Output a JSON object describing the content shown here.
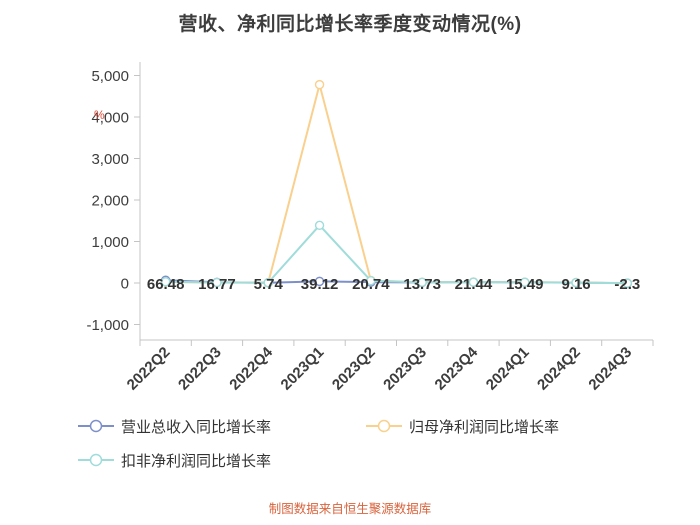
{
  "title": "营收、净利同比增长率季度变动情况(%)",
  "footer": "制图数据来自恒生聚源数据库",
  "chart_data": {
    "type": "line",
    "title": "营收、净利同比增长率季度变动情况(%)",
    "categories": [
      "2022Q2",
      "2022Q3",
      "2022Q4",
      "2023Q1",
      "2023Q2",
      "2023Q3",
      "2023Q4",
      "2024Q1",
      "2024Q2",
      "2024Q3"
    ],
    "series": [
      {
        "name": "营业总收入同比增长率",
        "color": "#7d90ca",
        "values": [
          66.48,
          16.77,
          5.74,
          39.12,
          20.74,
          13.73,
          21.44,
          15.49,
          9.16,
          -2.3
        ]
      },
      {
        "name": "归母净利润同比增长率",
        "color": "#f9d08d",
        "values": [
          25,
          10,
          8,
          4780,
          60,
          18,
          22,
          20,
          12,
          -5
        ]
      },
      {
        "name": "扣非净利润同比增长率",
        "color": "#9fdcda",
        "values": [
          30,
          12,
          9,
          1390,
          55,
          16,
          20,
          18,
          10,
          -6
        ]
      }
    ],
    "data_labels": [
      "66.48",
      "16.77",
      "5.74",
      "39.12",
      "20.74",
      "13.73",
      "21.44",
      "15.49",
      "9.16",
      "-2.3"
    ],
    "ylim": [
      -1000,
      5000
    ],
    "y_ticks": [
      5000,
      4000,
      3000,
      2000,
      1000,
      0,
      -1000
    ],
    "y_tick_labels": [
      "5,000",
      "4,000",
      "3,000",
      "2,000",
      "1,000",
      "0",
      "-1,000"
    ],
    "y_unit": "%",
    "grid": false,
    "legend_position": "bottom-left",
    "axis_color": "#c4c4c4",
    "label_color": "#3d3d3d",
    "unit_color": "#e04b3a"
  }
}
